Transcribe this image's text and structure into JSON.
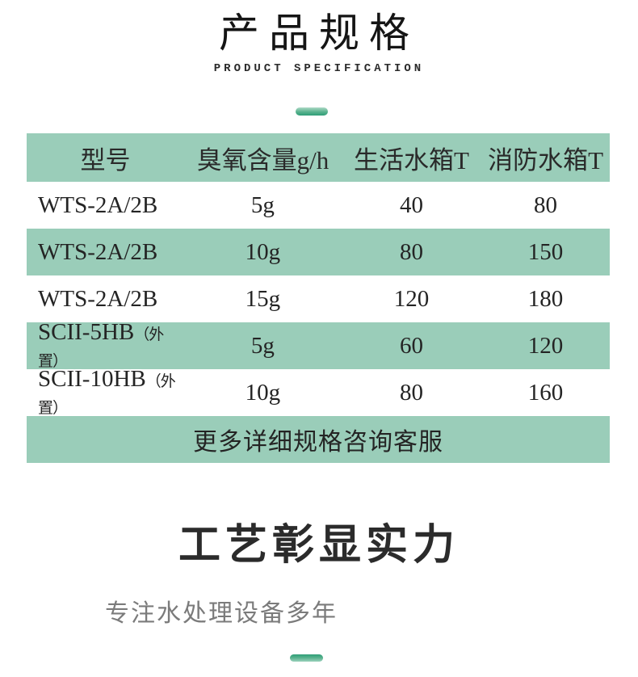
{
  "section1": {
    "title": "产品规格",
    "subtitle": "PRODUCT SPECIFICATION"
  },
  "table": {
    "headers": [
      "型号",
      "臭氧含量g/h",
      "生活水箱T",
      "消防水箱T"
    ],
    "rows": [
      {
        "model": "WTS-2A/2B",
        "note": "",
        "ozone": "5g",
        "living": "40",
        "fire": "80"
      },
      {
        "model": "WTS-2A/2B",
        "note": "",
        "ozone": "10g",
        "living": "80",
        "fire": "150"
      },
      {
        "model": "WTS-2A/2B",
        "note": "",
        "ozone": "15g",
        "living": "120",
        "fire": "180"
      },
      {
        "model": "SCII-5HB",
        "note": "（外置）",
        "ozone": "5g",
        "living": "60",
        "fire": "120"
      },
      {
        "model": "SCII-10HB",
        "note": "（外置）",
        "ozone": "10g",
        "living": "80",
        "fire": "160"
      }
    ],
    "footer": "更多详细规格咨询客服"
  },
  "section2": {
    "title": "工艺彰显实力",
    "subtitle": "专注水处理设备多年"
  },
  "colors": {
    "row_green": "#9acdb9",
    "dash_green_dark": "#2f9e77",
    "dash_green_light": "#aed9c6"
  }
}
